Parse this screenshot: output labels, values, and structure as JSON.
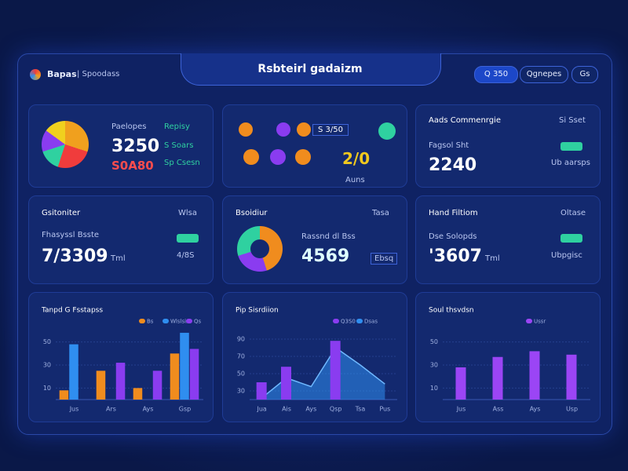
{
  "header": {
    "brand": "Bapas",
    "subtitle": "| Spoodass",
    "title": "Rsbteirl gadaizm",
    "buttons": [
      "Q 350",
      "Qgnepes",
      "Gs"
    ]
  },
  "cards": [
    {
      "label": "Paelopes",
      "value": "3250",
      "sub": "S0A80",
      "r1": "Repisy",
      "r2": "S Soars",
      "r3": "Sp Csesn"
    },
    {
      "label": "S 3/50",
      "value": "2/0",
      "sub": "Auns"
    },
    {
      "label": "Aads Commenrgie",
      "right": "Si Sset",
      "sub": "Fagsol Sht",
      "value": "2240",
      "note": "Ub aarsps"
    },
    {
      "label": "Gsitoniter",
      "right": "Wlsa",
      "sub": "Fhasyssl Bsste",
      "value": "7/3309",
      "unit": "Tml",
      "note": "4/8S"
    },
    {
      "label": "Bsoidiur",
      "right": "Tasa",
      "sub": "Rassnd dl Bss",
      "value": "4569",
      "note": "Ebsq"
    },
    {
      "label": "Hand Filtiom",
      "right": "Oltase",
      "sub": "Dse Solopds",
      "value": "'3607",
      "unit": "Tml",
      "note": "Ubpgisc"
    }
  ],
  "charts": [
    {
      "type": "bar",
      "title": "Tanpd G Fsstapss",
      "categories": [
        "Jus",
        "Ars",
        "Ays",
        "Gsp"
      ],
      "ylim": [
        0,
        60
      ],
      "yticks": [
        10,
        30,
        50
      ],
      "series": [
        {
          "name": "Bs",
          "color": "#f08c1e",
          "values": [
            8,
            25,
            10,
            40
          ]
        },
        {
          "name": "Wlslsis",
          "color": "#2f8ef0",
          "values": [
            48,
            null,
            null,
            58
          ]
        },
        {
          "name": "Qs",
          "color": "#8a3cf0",
          "values": [
            null,
            32,
            25,
            44
          ]
        }
      ]
    },
    {
      "type": "combo",
      "title": "Pip Sisrdiion",
      "categories": [
        "Jua",
        "Ais",
        "Ays",
        "Qsp",
        "Tsa",
        "Pus"
      ],
      "ylim": [
        20,
        100
      ],
      "yticks": [
        30,
        50,
        70,
        90
      ],
      "series": [
        {
          "name": "Q3S0",
          "color": "#8a3cf0",
          "kind": "bar",
          "values": [
            40,
            58,
            null,
            88,
            null,
            null
          ]
        },
        {
          "name": "Dsas",
          "color": "#2f8ef0",
          "kind": "area",
          "values": [
            22,
            45,
            35,
            80,
            60,
            38
          ]
        }
      ]
    },
    {
      "type": "bar",
      "title": "Soul thsvdsn",
      "categories": [
        "Jus",
        "Ass",
        "Ays",
        "Usp"
      ],
      "ylim": [
        0,
        60
      ],
      "yticks": [
        10,
        30,
        50
      ],
      "series": [
        {
          "name": "Ussr",
          "color": "#9b45f5",
          "values": [
            28,
            37,
            42,
            39
          ]
        }
      ]
    }
  ]
}
